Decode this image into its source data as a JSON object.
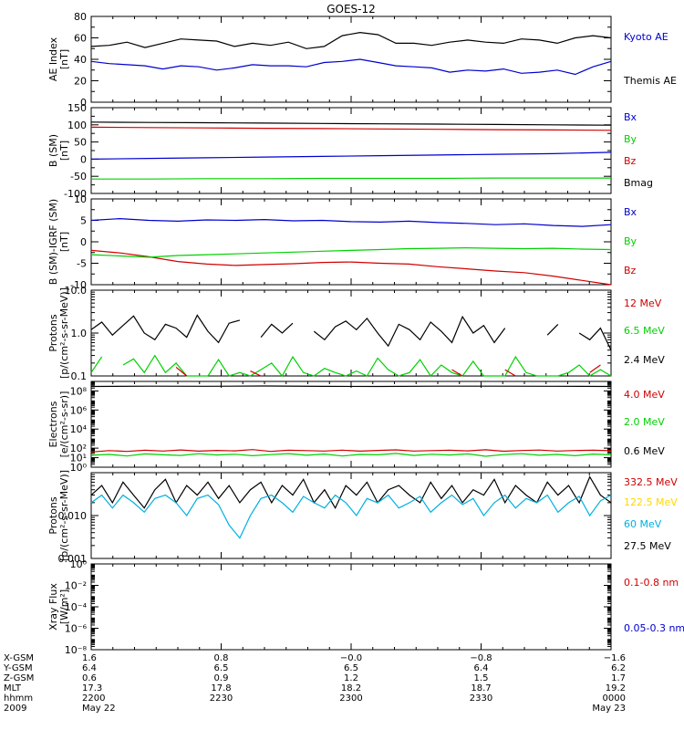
{
  "title": "GOES-12",
  "chart_data": [
    {
      "id": "ae",
      "type": "line",
      "ylabel": [
        "AE Index",
        "[nT]"
      ],
      "ylim": [
        0,
        80
      ],
      "yticks": [
        0,
        20,
        40,
        60,
        80
      ],
      "yscale": "linear",
      "yminor": [
        10,
        30,
        50,
        70
      ],
      "series": [
        {
          "name": "Kyoto AE",
          "color": "#0000d0",
          "draw": "#000000",
          "values": [
            52,
            53,
            56,
            51,
            55,
            59,
            58,
            57,
            52,
            55,
            53,
            56,
            50,
            52,
            62,
            65,
            63,
            55,
            55,
            53,
            56,
            58,
            56,
            55,
            59,
            58,
            55,
            60,
            62,
            60
          ]
        },
        {
          "name": "Themis AE",
          "color": "#000000",
          "draw": "#0000d0",
          "values": [
            38,
            36,
            35,
            34,
            31,
            34,
            33,
            30,
            32,
            35,
            34,
            34,
            33,
            37,
            38,
            40,
            37,
            34,
            33,
            32,
            28,
            30,
            29,
            31,
            27,
            28,
            30,
            26,
            33,
            38
          ]
        }
      ]
    },
    {
      "id": "bsm",
      "type": "line",
      "ylabel": [
        "B (SM)",
        "[nT]"
      ],
      "ylim": [
        -100,
        150
      ],
      "yticks": [
        -100,
        -50,
        0,
        50,
        100,
        150
      ],
      "yscale": "linear",
      "yminor": [
        -75,
        -25,
        25,
        75,
        125
      ],
      "series": [
        {
          "name": "Bx",
          "color": "#0000d0",
          "draw": "#000000",
          "values": [
            108,
            107,
            106,
            105,
            104,
            103,
            102,
            101,
            100,
            99
          ]
        },
        {
          "name": "By",
          "color": "#00d000",
          "draw": "#d00000",
          "values": [
            93,
            92,
            91,
            90,
            89,
            88,
            87,
            86,
            85,
            84
          ]
        },
        {
          "name": "Bz",
          "color": "#d00000",
          "draw": "#0000d0",
          "values": [
            0,
            2,
            4,
            6,
            8,
            10,
            12,
            14,
            16,
            20
          ]
        },
        {
          "name": "Bmag",
          "color": "#000000",
          "draw": "#00d000",
          "values": [
            -58,
            -58,
            -57,
            -57,
            -56,
            -56,
            -56,
            -55,
            -55,
            -55
          ]
        }
      ]
    },
    {
      "id": "bigrf",
      "type": "line",
      "ylabel": [
        "B (SM)-IGRF (SM)",
        "[nT]"
      ],
      "ylim": [
        -10,
        10
      ],
      "yticks": [
        -10,
        -5,
        0,
        5,
        10
      ],
      "yscale": "linear",
      "yminor": [
        -7.5,
        -2.5,
        2.5,
        7.5
      ],
      "series": [
        {
          "name": "Bx",
          "color": "#0000d0",
          "values": [
            5,
            5.4,
            5,
            4.8,
            5.1,
            5,
            5.2,
            4.9,
            5,
            4.7,
            4.6,
            4.8,
            4.5,
            4.3,
            4,
            4.2,
            3.8,
            3.6,
            4
          ]
        },
        {
          "name": "By",
          "color": "#00d000",
          "values": [
            -3,
            -3.3,
            -3.6,
            -3.2,
            -3,
            -2.8,
            -2.6,
            -2.4,
            -2.2,
            -2,
            -1.8,
            -1.6,
            -1.5,
            -1.4,
            -1.5,
            -1.6,
            -1.5,
            -1.7,
            -1.8
          ]
        },
        {
          "name": "Bz",
          "color": "#d00000",
          "values": [
            -2,
            -2.6,
            -3.5,
            -4.6,
            -5.2,
            -5.5,
            -5.3,
            -5.1,
            -4.8,
            -4.7,
            -5,
            -5.2,
            -5.8,
            -6.3,
            -6.8,
            -7.2,
            -8,
            -9,
            -10
          ]
        }
      ]
    },
    {
      "id": "protons_hi",
      "type": "line",
      "ylabel": [
        "Protons",
        "[p/(cm²-s-sr-MeV)]"
      ],
      "ylim": [
        0.1,
        10
      ],
      "yticks": [
        0.1,
        1.0,
        10.0
      ],
      "ytick_labels": [
        "0.1",
        "1.0",
        "10.0"
      ],
      "yscale": "log",
      "series": [
        {
          "name": "12 MeV",
          "color": "#d00000",
          "values": [
            null,
            null,
            null,
            null,
            null,
            null,
            null,
            null,
            0.16,
            0.1,
            null,
            null,
            null,
            null,
            null,
            0.13,
            0.1,
            null,
            null,
            null,
            null,
            null,
            null,
            null,
            null,
            null,
            null,
            null,
            null,
            null,
            null,
            null,
            null,
            null,
            0.14,
            0.1,
            null,
            null,
            null,
            0.14,
            0.1,
            null,
            null,
            null,
            null,
            null,
            null,
            0.12,
            0.18,
            null
          ]
        },
        {
          "name": "6.5 MeV",
          "color": "#00d000",
          "values": [
            0.12,
            0.28,
            null,
            0.18,
            0.25,
            0.12,
            0.3,
            0.12,
            0.2,
            0.1,
            0.1,
            0.1,
            0.24,
            0.1,
            0.12,
            0.1,
            0.14,
            0.2,
            0.1,
            0.28,
            0.12,
            0.1,
            0.15,
            0.12,
            0.1,
            0.13,
            0.1,
            0.26,
            0.14,
            0.1,
            0.12,
            0.24,
            0.1,
            0.18,
            0.12,
            0.1,
            0.22,
            0.1,
            0.1,
            0.1,
            0.28,
            0.12,
            0.1,
            0.1,
            0.1,
            0.12,
            0.18,
            0.1,
            0.14,
            0.1
          ]
        },
        {
          "name": "2.4 MeV",
          "color": "#000000",
          "values": [
            1.2,
            1.8,
            0.9,
            1.5,
            2.5,
            1.0,
            0.7,
            1.6,
            1.3,
            0.8,
            2.6,
            1.1,
            0.6,
            1.7,
            2.0,
            null,
            0.8,
            1.6,
            1.0,
            1.7,
            null,
            1.1,
            0.7,
            1.4,
            1.9,
            1.2,
            2.2,
            1.0,
            0.5,
            1.6,
            1.2,
            0.7,
            1.8,
            1.1,
            0.6,
            2.4,
            1.0,
            1.5,
            0.6,
            1.3,
            null,
            1.1,
            null,
            0.9,
            1.6,
            null,
            1.0,
            0.7,
            1.3,
            0.4
          ]
        }
      ]
    },
    {
      "id": "electrons",
      "type": "line",
      "ylabel": [
        "Electrons",
        "[e/(cm²-s-sr)]"
      ],
      "ylim": [
        1,
        1000000000
      ],
      "yscale": "log",
      "yticks": [
        1,
        10,
        100,
        10000,
        1000000,
        100000000
      ],
      "ytick_labels": [
        "10⁰",
        "10¹",
        "10²",
        "10⁴",
        "10⁶",
        "10⁸"
      ],
      "series": [
        {
          "name": "4.0 MeV",
          "color": "#d00000",
          "values": [
            40,
            55,
            45,
            60,
            50,
            65,
            48,
            58,
            52,
            70,
            45,
            60,
            55,
            50,
            62,
            48,
            58,
            66,
            50,
            55,
            60,
            52,
            68,
            47,
            57,
            63,
            49,
            56,
            61,
            54
          ]
        },
        {
          "name": "2.0 MeV",
          "color": "#00d000",
          "values": [
            18,
            22,
            15,
            25,
            20,
            17,
            26,
            19,
            23,
            16,
            21,
            27,
            18,
            24,
            15,
            22,
            20,
            28,
            17,
            23,
            19,
            25,
            14,
            21,
            26,
            18,
            22,
            16,
            24,
            20
          ]
        },
        {
          "name": "0.6 MeV",
          "color": "#000000",
          "values": [
            300000000,
            320000000,
            310000000,
            330000000,
            305000000,
            300000000,
            315000000,
            320000000,
            310000000,
            300000000
          ]
        }
      ]
    },
    {
      "id": "protons_lo",
      "type": "line",
      "ylabel": [
        "Protons",
        "[p/(cm²-s-sr-MeV)]"
      ],
      "ylim": [
        0.001,
        0.1
      ],
      "yticks": [
        0.001,
        0.01
      ],
      "ytick_labels": [
        "0.001",
        "0.010"
      ],
      "yscale": "log",
      "series": [
        {
          "name": "332.5 MeV",
          "color": "#d00000",
          "values": []
        },
        {
          "name": "122.5 MeV",
          "color": "#ffd800",
          "values": []
        },
        {
          "name": "60 MeV",
          "color": "#00b0e0",
          "values": [
            0.02,
            0.03,
            0.015,
            0.03,
            0.02,
            0.012,
            0.025,
            0.03,
            0.02,
            0.01,
            0.025,
            0.03,
            0.018,
            0.006,
            0.003,
            0.01,
            0.025,
            0.03,
            0.02,
            0.012,
            0.028,
            0.02,
            0.015,
            0.03,
            0.02,
            0.01,
            0.025,
            0.02,
            0.03,
            0.015,
            0.02,
            0.028,
            0.012,
            0.02,
            0.03,
            0.018,
            0.025,
            0.01,
            0.02,
            0.03,
            0.015,
            0.025,
            0.02,
            0.03,
            0.012,
            0.02,
            0.028,
            0.01,
            0.022,
            0.03
          ]
        },
        {
          "name": "27.5 MeV",
          "color": "#000000",
          "values": [
            0.03,
            0.05,
            0.02,
            0.06,
            0.03,
            0.015,
            0.04,
            0.07,
            0.02,
            0.05,
            0.03,
            0.06,
            0.025,
            0.05,
            0.02,
            0.04,
            0.06,
            0.02,
            0.05,
            0.03,
            0.07,
            0.02,
            0.04,
            0.015,
            0.05,
            0.03,
            0.06,
            0.02,
            0.04,
            0.05,
            0.03,
            0.02,
            0.06,
            0.025,
            0.05,
            0.02,
            0.04,
            0.03,
            0.07,
            0.02,
            0.05,
            0.03,
            0.02,
            0.06,
            0.03,
            0.05,
            0.02,
            0.08,
            0.03,
            0.02
          ]
        }
      ]
    },
    {
      "id": "xray",
      "type": "line",
      "ylabel": [
        "Xray Flux",
        "[W/m²]"
      ],
      "ylim": [
        1e-08,
        1
      ],
      "yscale": "log",
      "yticks": [
        1e-08,
        1e-06,
        0.0001,
        0.01,
        1
      ],
      "ytick_labels": [
        "10⁻⁸",
        "10⁻⁶",
        "10⁻⁴",
        "10⁻²",
        "10⁰"
      ],
      "series": [
        {
          "name": "0.1-0.8 nm",
          "color": "#d00000",
          "values": []
        },
        {
          "name": "0.05-0.3 nm",
          "color": "#0000d0",
          "values": []
        }
      ]
    }
  ],
  "ephemeris": {
    "labels": [
      "X-GSM",
      "Y-GSM",
      "Z-GSM",
      "MLT",
      "hhmm",
      "2009"
    ],
    "columns": [
      [
        "1.6",
        "6.4",
        "0.6",
        "17.3",
        "2200",
        "May 22"
      ],
      [
        "0.8",
        "6.5",
        "0.9",
        "17.8",
        "2230",
        ""
      ],
      [
        "−0.0",
        "6.5",
        "1.2",
        "18.2",
        "2300",
        ""
      ],
      [
        "−0.8",
        "6.4",
        "1.5",
        "18.7",
        "2330",
        ""
      ],
      [
        "−1.6",
        "6.2",
        "1.7",
        "19.2",
        "0000",
        "May 23"
      ]
    ]
  }
}
